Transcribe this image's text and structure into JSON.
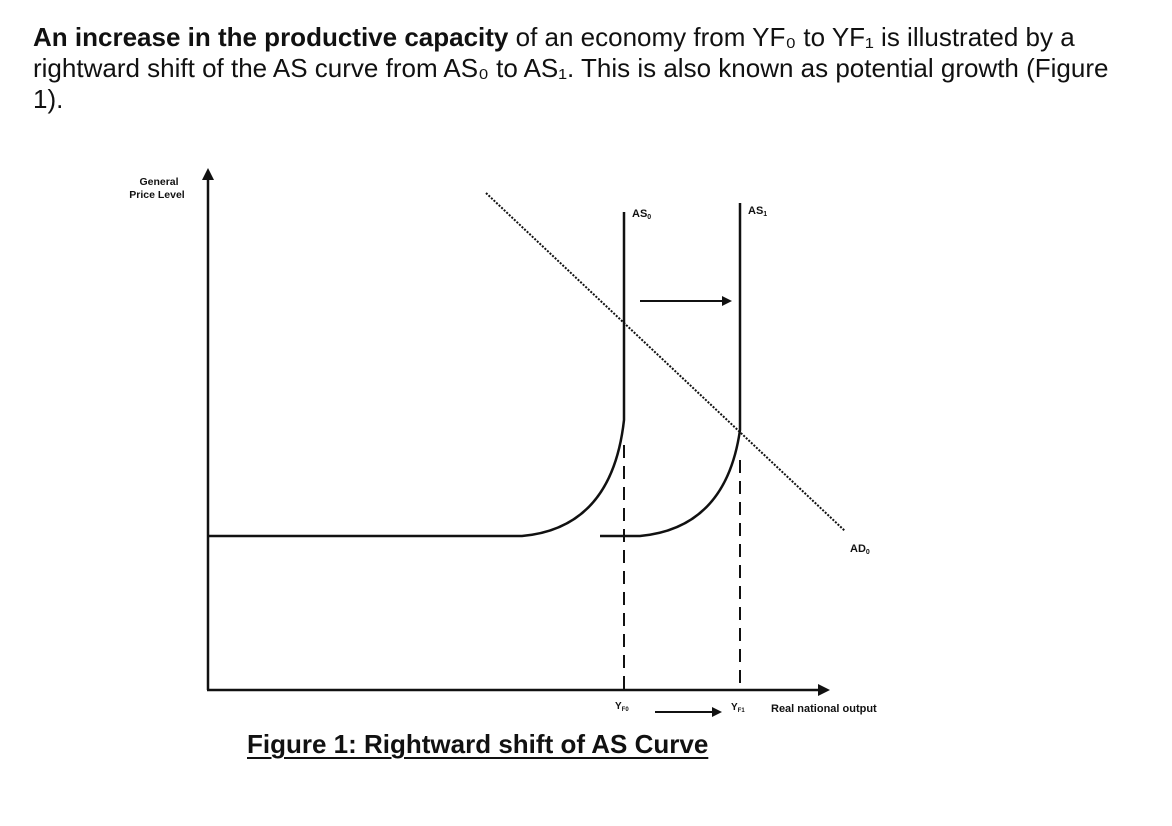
{
  "text": {
    "intro_bold": "An increase in the productive capacity",
    "intro_rest": " of an economy from YF₀ to YF₁ is illustrated by a rightward shift of the AS curve from AS₀ to AS₁. This is also known as potential growth (Figure 1).",
    "caption": "Figure 1: Rightward shift of AS Curve"
  },
  "diagram": {
    "y_axis_label_line1": "General",
    "y_axis_label_line2": "Price Level",
    "x_axis_label": "Real national output",
    "as0_label": "AS",
    "as0_sub": "0",
    "as1_label": "AS",
    "as1_sub": "1",
    "ad0_label": "AD",
    "ad0_sub": "0",
    "yf0_label": "Y",
    "yf0_sub": "F0",
    "yf1_label": "Y",
    "yf1_sub": "F1",
    "colors": {
      "ink": "#111111",
      "background": "#ffffff"
    }
  }
}
